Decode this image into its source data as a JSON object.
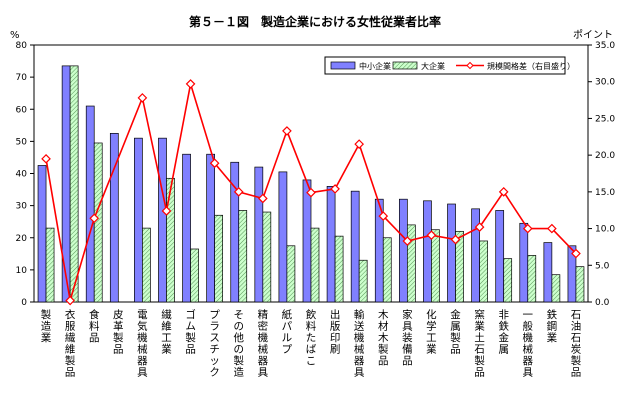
{
  "chart_data": {
    "type": "bar+line",
    "title": "第５－１図　製造企業における女性従業者比率",
    "left_unit": "%",
    "right_unit": "ポイント",
    "left_axis": {
      "min": 0,
      "max": 80,
      "step": 10
    },
    "right_axis": {
      "min": 0,
      "max": 35,
      "step": 5
    },
    "right_tick_labels": [
      "0.0",
      "5.0",
      "10.0",
      "15.0",
      "20.0",
      "25.0",
      "30.0",
      "35.0"
    ],
    "categories": [
      "製造業",
      "衣服繊維製品",
      "食料品",
      "皮革製品",
      "電気機械器具",
      "繊維工業",
      "ゴム製品",
      "プラスチック",
      "その他の製造",
      "精密機械器具",
      "紙パルプ",
      "飲料たばこ",
      "出版印刷",
      "輸送機械器具",
      "木材木製品",
      "家具装備品",
      "化学工業",
      "金属製品",
      "窯業土石製品",
      "非鉄金属",
      "一般機械器具",
      "鉄鋼業",
      "石油石炭製品"
    ],
    "series": [
      {
        "name": "中小企業",
        "axis": "left",
        "color": "#8080ff",
        "values": [
          42.5,
          73.5,
          61,
          52.5,
          51,
          51,
          46,
          46,
          43.5,
          42,
          40.5,
          38,
          36,
          34.5,
          32,
          32,
          31.5,
          30.5,
          29,
          28.5,
          24.5,
          18.5,
          17.5
        ]
      },
      {
        "name": "大企業",
        "axis": "left",
        "color": "#ccffcc",
        "values": [
          23,
          73.5,
          49.5,
          0,
          23,
          38.5,
          16.5,
          27,
          28.5,
          28,
          17.5,
          23,
          20.5,
          13,
          20,
          24,
          22.5,
          22,
          19,
          13.5,
          14.5,
          8.5,
          11
        ]
      },
      {
        "name": "規模間格差（右目盛り）",
        "axis": "right",
        "color": "#ff0000",
        "values": [
          19.5,
          0.2,
          11.4,
          null,
          27.8,
          12.4,
          29.7,
          18.9,
          15,
          14.1,
          23.3,
          14.9,
          15.4,
          21.5,
          11.7,
          8.3,
          9.1,
          8.5,
          10.2,
          15,
          10,
          10,
          6.6
        ]
      }
    ],
    "legend_position": "top-right",
    "grid": false
  }
}
